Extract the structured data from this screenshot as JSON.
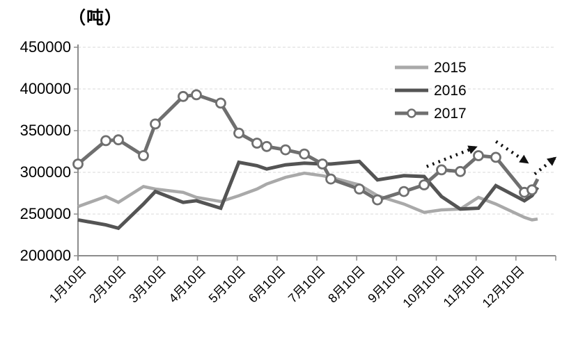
{
  "chart_data": {
    "type": "line",
    "title": "（吨）",
    "unit": "吨",
    "ylim": [
      200000,
      450000
    ],
    "y_ticks": [
      450000,
      400000,
      350000,
      300000,
      250000,
      200000
    ],
    "x_tick_labels": [
      "1月10日",
      "2月10日",
      "3月10日",
      "4月10日",
      "5月10日",
      "6月10日",
      "7月10日",
      "8月10日",
      "9月10日",
      "10月10日",
      "11月10日",
      "12月10日"
    ],
    "grid": true,
    "legend_position": "inside-top-right",
    "x_frac": [
      0,
      5.83,
      8.45,
      13.7,
      16.18,
      22.01,
      24.78,
      29.88,
      33.67,
      37.46,
      39.5,
      43.44,
      47.38,
      51.17,
      52.92,
      58.89,
      62.68,
      68.22,
      72.45,
      76.09,
      80.03,
      83.82,
      87.46,
      93.44,
      95.04,
      96.21
    ],
    "series": [
      {
        "name": "2015",
        "color": "#a9a9a9",
        "width": 4.5,
        "marker": "none",
        "values": [
          259000,
          271000,
          264000,
          283000,
          280000,
          276000,
          270000,
          265000,
          272000,
          280000,
          286000,
          294000,
          299000,
          296000,
          294000,
          285000,
          272000,
          262000,
          252000,
          255000,
          256000,
          270000,
          262000,
          246000,
          243000,
          244000
        ]
      },
      {
        "name": "2016",
        "color": "#545454",
        "width": 5,
        "marker": "none",
        "values": [
          243000,
          237000,
          233000,
          262000,
          277000,
          264000,
          266000,
          257000,
          312000,
          308000,
          304000,
          309000,
          311000,
          310000,
          310000,
          313000,
          291000,
          296000,
          295000,
          271000,
          256000,
          257000,
          284000,
          266000,
          272000,
          282000
        ]
      },
      {
        "name": "2017",
        "color": "#6f6f6f",
        "width": 5,
        "marker": "circle",
        "marker_omit_last": true,
        "values": [
          310000,
          338000,
          339000,
          320000,
          358000,
          391000,
          393000,
          383000,
          347000,
          335000,
          331000,
          327000,
          322000,
          310000,
          292000,
          280000,
          267000,
          277000,
          285000,
          303000,
          301000,
          320000,
          318000,
          276000,
          279000,
          292000
        ]
      }
    ],
    "annotations": [
      {
        "name": "trend-arrow-up-oct-nov",
        "style": "dotted-arrow",
        "from": {
          "x_frac": 73.0,
          "value": 307000
        },
        "to": {
          "x_frac": 83.2,
          "value": 330000
        }
      },
      {
        "name": "trend-arrow-down-dec",
        "style": "dotted-arrow",
        "from": {
          "x_frac": 87.5,
          "value": 337000
        },
        "to": {
          "x_frac": 94.0,
          "value": 312000
        }
      },
      {
        "name": "trend-arrow-up-end",
        "style": "dotted-arrow",
        "from": {
          "x_frac": 95.6,
          "value": 298000
        },
        "to": {
          "x_frac": 99.8,
          "value": 317000
        }
      }
    ],
    "colors": {
      "grid": "#d8d8d8",
      "axis": "#8c8c8c",
      "text": "#000000",
      "arrow": "#111111",
      "marker_fill": "#ffffff"
    }
  }
}
